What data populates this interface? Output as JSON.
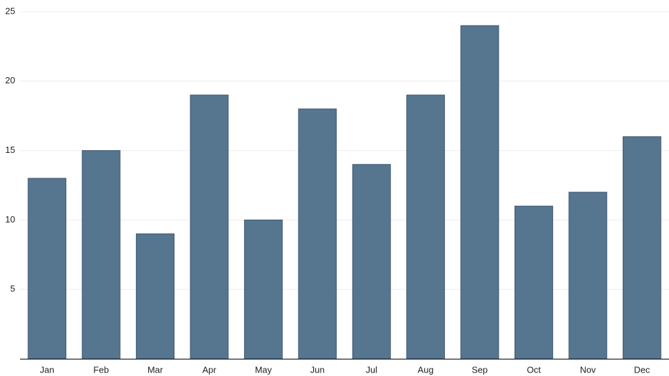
{
  "chart_data": {
    "type": "bar",
    "categories": [
      "Jan",
      "Feb",
      "Mar",
      "Apr",
      "May",
      "Jun",
      "Jul",
      "Aug",
      "Sep",
      "Oct",
      "Nov",
      "Dec"
    ],
    "values": [
      13,
      15,
      9,
      19,
      10,
      18,
      14,
      19,
      24,
      11,
      12,
      16
    ],
    "color": "#56758f",
    "ylim": [
      0,
      25
    ],
    "yticks": [
      5,
      10,
      15,
      20,
      25
    ],
    "grid": true
  }
}
